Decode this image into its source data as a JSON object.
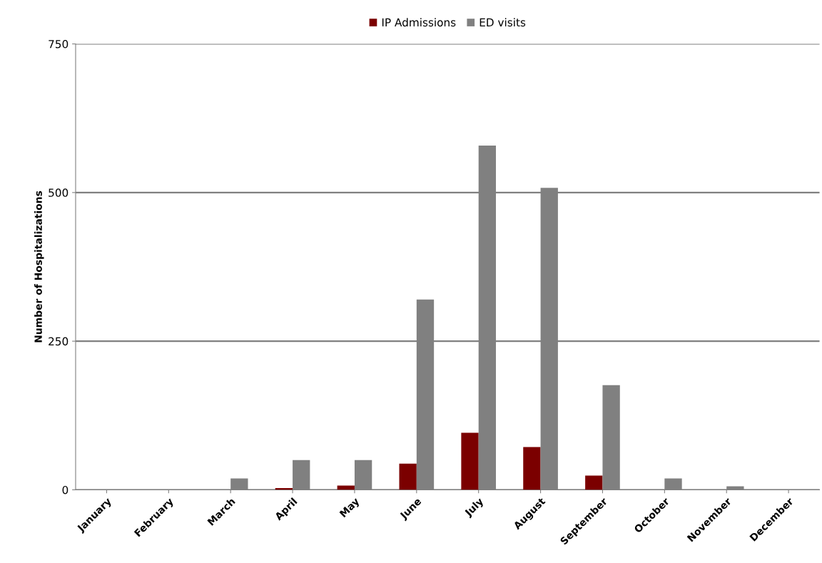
{
  "chart_data": {
    "type": "bar",
    "ylabel": "Number of Hospitalizations",
    "categories": [
      "January",
      "February",
      "March",
      "April",
      "May",
      "June",
      "July",
      "August",
      "September",
      "October",
      "November",
      "December"
    ],
    "series": [
      {
        "name": "IP Admissions",
        "color": "#7b0000",
        "values": [
          0,
          0,
          0,
          3,
          7,
          44,
          96,
          72,
          24,
          0,
          0,
          0
        ]
      },
      {
        "name": "ED visits",
        "color": "#808080",
        "values": [
          0,
          0,
          19,
          50,
          50,
          320,
          579,
          508,
          176,
          19,
          6,
          0
        ]
      }
    ],
    "ylim": [
      0,
      750
    ],
    "yticks": [
      0,
      250,
      500,
      750
    ],
    "grid": "y",
    "legend": "top"
  }
}
